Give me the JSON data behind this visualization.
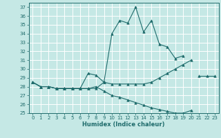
{
  "xlabel": "Humidex (Indice chaleur)",
  "bg_color": "#c5e8e5",
  "grid_color": "#ffffff",
  "line_color": "#1e6b6b",
  "xlim": [
    -0.5,
    23.5
  ],
  "ylim": [
    25,
    37.5
  ],
  "yticks": [
    25,
    26,
    27,
    28,
    29,
    30,
    31,
    32,
    33,
    34,
    35,
    36,
    37
  ],
  "xticks": [
    0,
    1,
    2,
    3,
    4,
    5,
    6,
    7,
    8,
    9,
    10,
    11,
    12,
    13,
    14,
    15,
    16,
    17,
    18,
    19,
    20,
    21,
    22,
    23
  ],
  "series": [
    {
      "segments": [
        {
          "x": [
            0,
            1,
            2,
            3,
            4,
            5,
            6,
            7,
            8,
            9,
            10,
            11,
            12,
            13,
            14,
            15,
            16,
            17,
            18,
            19
          ],
          "y": [
            28.5,
            28.0,
            28.0,
            27.8,
            27.8,
            27.8,
            27.8,
            27.8,
            27.8,
            28.5,
            34.0,
            35.5,
            35.2,
            37.0,
            34.2,
            35.5,
            32.8,
            32.5,
            31.2,
            31.5
          ]
        }
      ]
    },
    {
      "segments": [
        {
          "x": [
            0,
            1,
            2,
            3,
            4,
            5,
            6,
            7,
            8,
            9,
            10,
            11,
            12,
            13,
            14,
            15,
            16,
            17,
            18,
            19,
            20
          ],
          "y": [
            28.5,
            28.0,
            28.0,
            27.8,
            27.8,
            27.8,
            27.8,
            29.5,
            29.3,
            28.5,
            28.3,
            28.3,
            28.3,
            28.3,
            28.3,
            28.5,
            29.0,
            29.5,
            30.0,
            30.5,
            31.0
          ]
        },
        {
          "x": [
            21,
            22,
            23
          ],
          "y": [
            29.2,
            29.2,
            29.2
          ]
        }
      ]
    },
    {
      "segments": [
        {
          "x": [
            0,
            1,
            2,
            3,
            4,
            5,
            6,
            7,
            8,
            9,
            10,
            11,
            12,
            13,
            14,
            15,
            16,
            17,
            18,
            19,
            20
          ],
          "y": [
            28.5,
            28.0,
            28.0,
            27.8,
            27.8,
            27.8,
            27.8,
            27.8,
            28.0,
            27.5,
            27.0,
            26.8,
            26.5,
            26.2,
            25.9,
            25.6,
            25.4,
            25.2,
            25.0,
            25.0,
            25.3
          ]
        }
      ]
    }
  ]
}
